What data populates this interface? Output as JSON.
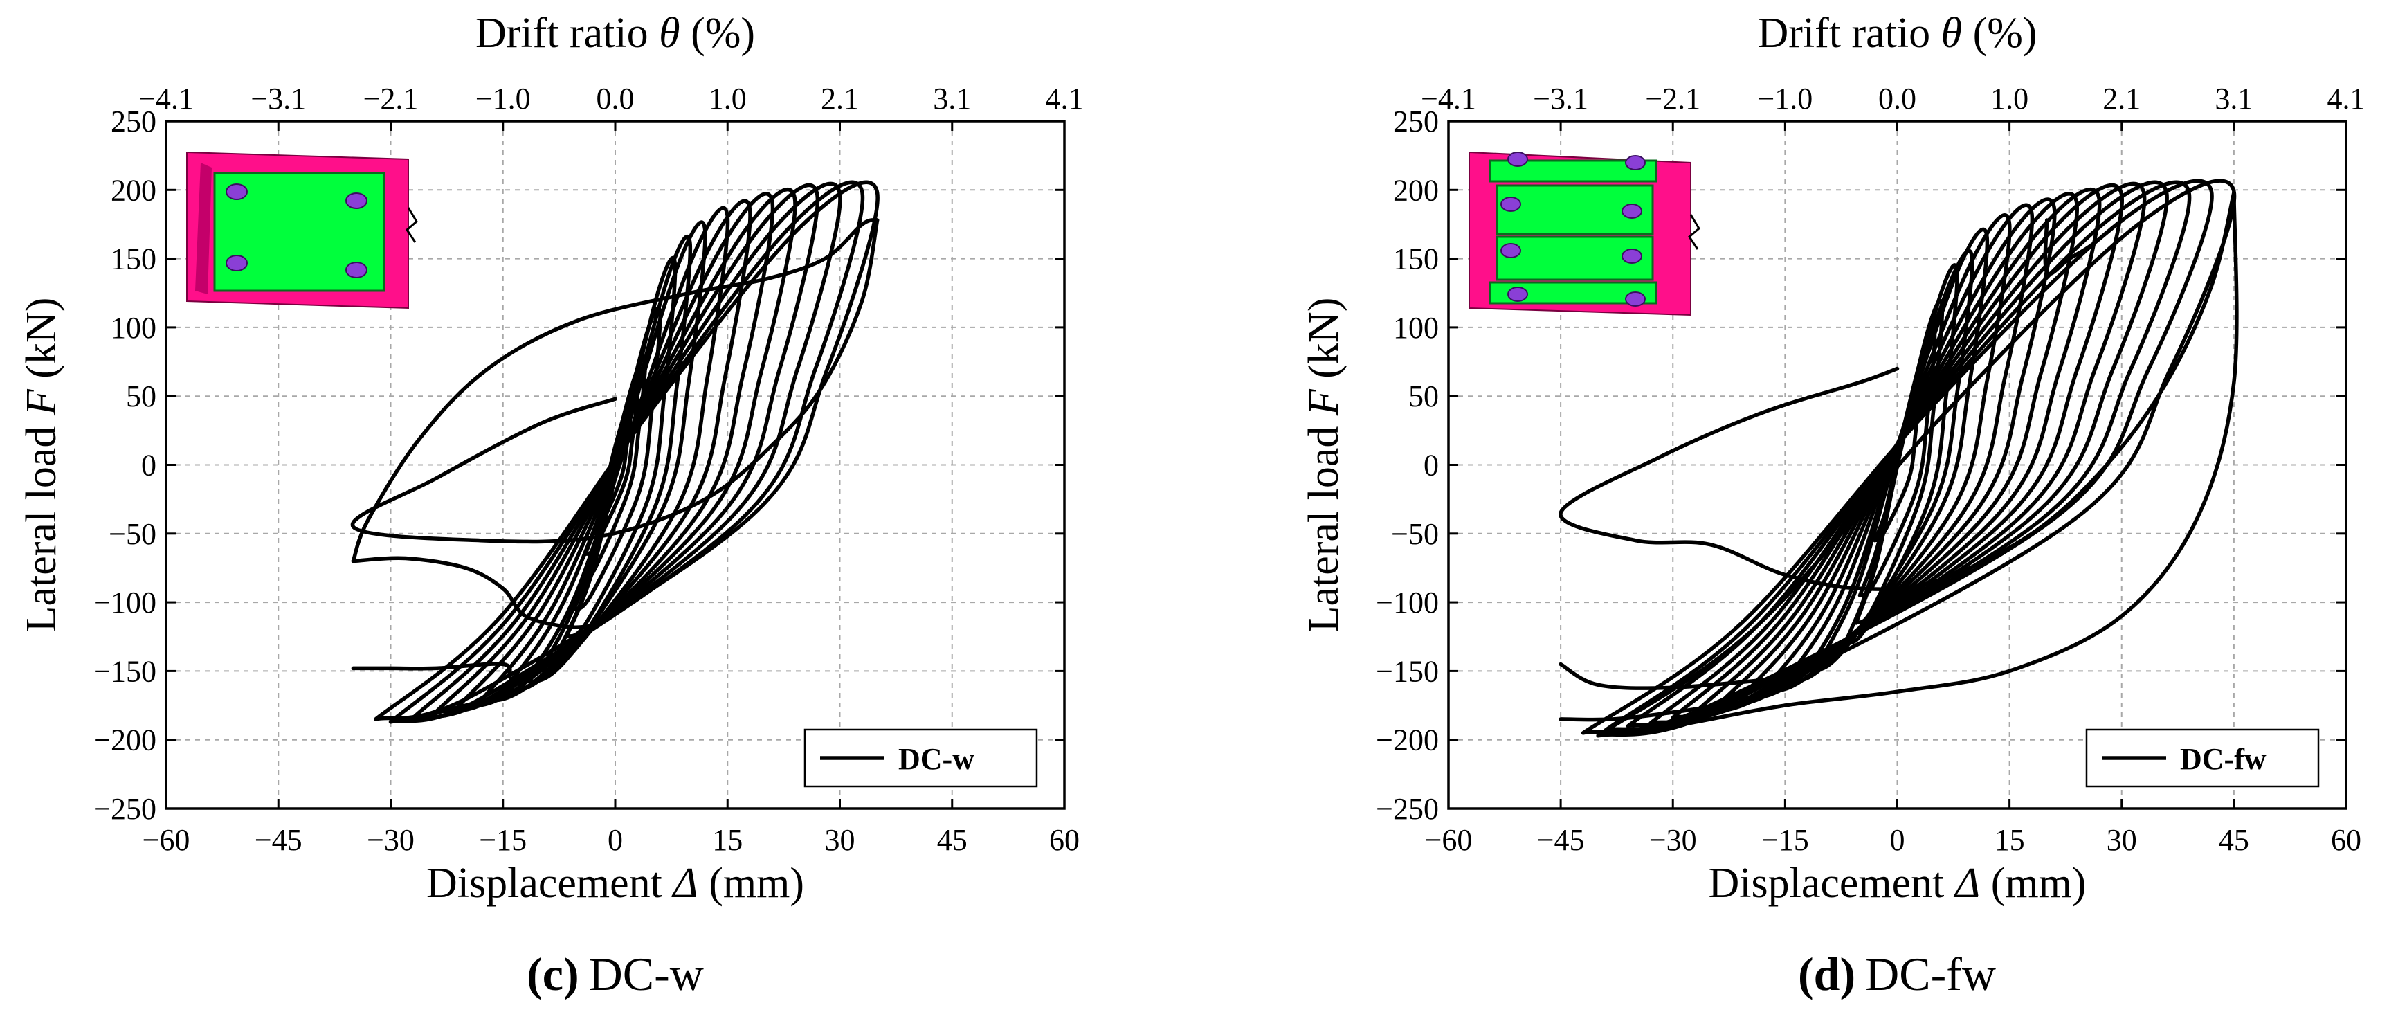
{
  "colors": {
    "line": "#000000",
    "grid": "#a8a8a8",
    "plate": "#00ff3c",
    "flange": "#ff0f8a",
    "bolt": "#8a3fd6"
  },
  "chart_data": [
    {
      "id": "c",
      "type": "line",
      "caption_label": "(c)",
      "caption_name": "DC-w",
      "xlabel_main": "Displacement ",
      "xlabel_symbol": "Δ",
      "xlabel_unit": " (mm)",
      "ylabel_main": "Lateral load ",
      "ylabel_symbol": "F",
      "ylabel_unit": " (kN)",
      "top_label_main": "Drift ratio ",
      "top_label_symbol": "θ",
      "top_label_unit": " (%)",
      "xlim": [
        -60,
        60
      ],
      "ylim": [
        -250,
        250
      ],
      "xticks": [
        "−60",
        "−45",
        "−30",
        "−15",
        "0",
        "15",
        "30",
        "45",
        "60"
      ],
      "yticks": [
        "250",
        "200",
        "150",
        "100",
        "50",
        "0",
        "−50",
        "−100",
        "−150",
        "−200",
        "−250"
      ],
      "top_ticks": [
        "−4.1",
        "−3.1",
        "−2.1",
        "−1.0",
        "0.0",
        "1.0",
        "2.1",
        "3.1",
        "4.1"
      ],
      "grid": true,
      "legend_position": "bottom-right",
      "legend": [
        "DC-w"
      ],
      "inset": "welded-plate",
      "peaks": [
        [
          2,
          35,
          -3,
          -50
        ],
        [
          3,
          55,
          -4,
          -65
        ],
        [
          4,
          75,
          -4.5,
          -85
        ],
        [
          6,
          110,
          -5.5,
          -105
        ],
        [
          8,
          145,
          -6.5,
          -125
        ],
        [
          10,
          160,
          -8,
          -140
        ],
        [
          12,
          170,
          -10,
          -150
        ],
        [
          15,
          180,
          -12,
          -158
        ],
        [
          18,
          185,
          -15,
          -165
        ],
        [
          21,
          190,
          -18,
          -172
        ],
        [
          24,
          193,
          -21,
          -176
        ],
        [
          27,
          196,
          -24,
          -180
        ],
        [
          30,
          197,
          -27,
          -184
        ],
        [
          33,
          198,
          -30,
          -187
        ],
        [
          35,
          198,
          -32,
          -185
        ]
      ],
      "extra_curves": [
        [
          [
            35,
            178
          ],
          [
            33,
            120
          ],
          [
            28,
            60
          ],
          [
            22,
            20
          ],
          [
            12,
            -25
          ],
          [
            -2,
            -52
          ],
          [
            -18,
            -55
          ],
          [
            -35,
            -45
          ],
          [
            -24,
            -10
          ],
          [
            -10,
            30
          ],
          [
            0,
            48
          ]
        ],
        [
          [
            -35,
            -70
          ],
          [
            -28,
            -68
          ],
          [
            -20,
            -75
          ],
          [
            -15,
            -90
          ],
          [
            -12,
            -110
          ],
          [
            -6,
            -118
          ],
          [
            -2,
            -116
          ]
        ],
        [
          [
            -35,
            -148
          ],
          [
            -30,
            -148
          ],
          [
            -24,
            -148
          ],
          [
            -15,
            -145
          ],
          [
            -14,
            -155
          ],
          [
            -12,
            -162
          ]
        ],
        [
          [
            -30,
            -185
          ],
          [
            -26,
            -183
          ],
          [
            -20,
            -175
          ],
          [
            -15,
            -168
          ]
        ],
        [
          [
            -35,
            -70
          ],
          [
            -33,
            -40
          ],
          [
            -26,
            20
          ],
          [
            -17,
            70
          ],
          [
            -5,
            105
          ],
          [
            10,
            125
          ],
          [
            20,
            135
          ],
          [
            28,
            150
          ],
          [
            33,
            175
          ],
          [
            35,
            178
          ]
        ]
      ]
    },
    {
      "id": "d",
      "type": "line",
      "caption_label": "(d)",
      "caption_name": "DC-fw",
      "xlabel_main": "Displacement ",
      "xlabel_symbol": "Δ",
      "xlabel_unit": " (mm)",
      "ylabel_main": "Lateral load ",
      "ylabel_symbol": "F",
      "ylabel_unit": " (kN)",
      "top_label_main": "Drift ratio ",
      "top_label_symbol": "θ",
      "top_label_unit": " (%)",
      "xlim": [
        -60,
        60
      ],
      "ylim": [
        -250,
        250
      ],
      "xticks": [
        "−60",
        "−45",
        "−30",
        "−15",
        "0",
        "15",
        "30",
        "45",
        "60"
      ],
      "yticks": [
        "250",
        "200",
        "150",
        "100",
        "50",
        "0",
        "−50",
        "−100",
        "−150",
        "−200",
        "−250"
      ],
      "top_ticks": [
        "−4.1",
        "−3.1",
        "−2.1",
        "−1.0",
        "0.0",
        "1.0",
        "2.1",
        "3.1",
        "4.1"
      ],
      "grid": true,
      "legend_position": "bottom-right",
      "legend": [
        "DC-fw"
      ],
      "inset": "flange-web-plates",
      "peaks": [
        [
          3,
          60,
          -3,
          -55
        ],
        [
          5,
          95,
          -5,
          -95
        ],
        [
          6,
          115,
          -5.5,
          -115
        ],
        [
          8,
          140,
          -7,
          -130
        ],
        [
          10,
          150,
          -10,
          -140
        ],
        [
          12,
          165,
          -12,
          -150
        ],
        [
          15,
          175,
          -15,
          -158
        ],
        [
          18,
          182,
          -18,
          -165
        ],
        [
          21,
          186,
          -21,
          -170
        ],
        [
          24,
          190,
          -24,
          -175
        ],
        [
          27,
          193,
          -27,
          -180
        ],
        [
          30,
          196,
          -30,
          -184
        ],
        [
          33,
          197,
          -33,
          -188
        ],
        [
          36,
          198,
          -36,
          -190
        ],
        [
          39,
          198,
          -39,
          -193
        ],
        [
          42,
          199,
          -42,
          -195
        ],
        [
          45,
          199,
          -40,
          -197
        ]
      ],
      "extra_curves": [
        [
          [
            45,
            198
          ],
          [
            42,
            130
          ],
          [
            36,
            60
          ],
          [
            28,
            0
          ],
          [
            18,
            -50
          ],
          [
            5,
            -85
          ],
          [
            -5,
            -90
          ],
          [
            -15,
            -80
          ],
          [
            -25,
            -58
          ],
          [
            -35,
            -55
          ],
          [
            -45,
            -35
          ],
          [
            -32,
            5
          ],
          [
            -18,
            38
          ],
          [
            -5,
            60
          ],
          [
            0,
            70
          ]
        ],
        [
          [
            -45,
            -145
          ],
          [
            -40,
            -160
          ],
          [
            -30,
            -162
          ],
          [
            -15,
            -155
          ]
        ],
        [
          [
            -45,
            -185
          ],
          [
            -38,
            -185
          ],
          [
            -30,
            -180
          ],
          [
            -20,
            -172
          ]
        ],
        [
          [
            20,
            178
          ],
          [
            20,
            140
          ],
          [
            23,
            150
          ],
          [
            26,
            160
          ],
          [
            30,
            178
          ]
        ],
        [
          [
            -40,
            -197
          ],
          [
            -30,
            -190
          ],
          [
            -15,
            -175
          ],
          [
            0,
            -165
          ],
          [
            15,
            -150
          ],
          [
            30,
            -110
          ],
          [
            40,
            -40
          ],
          [
            45,
            60
          ],
          [
            45,
            198
          ]
        ]
      ]
    }
  ]
}
